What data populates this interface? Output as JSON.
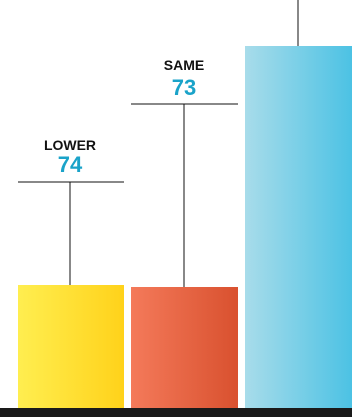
{
  "chart_data": {
    "type": "bar",
    "categories": [
      "LOWER",
      "SAME",
      ""
    ],
    "values": [
      74,
      73,
      null
    ],
    "value_color": "#1aa3c9",
    "series_colors": [
      {
        "light": "#ffee50",
        "dark": "#ffd21a"
      },
      {
        "light": "#f47a5a",
        "dark": "#d9512f"
      },
      {
        "light": "#a8dcea",
        "dark": "#4cc2e4"
      }
    ],
    "callout_line_color": "#111111",
    "baseline_color": "#1a1a1a",
    "grid": false,
    "legend": "none"
  }
}
